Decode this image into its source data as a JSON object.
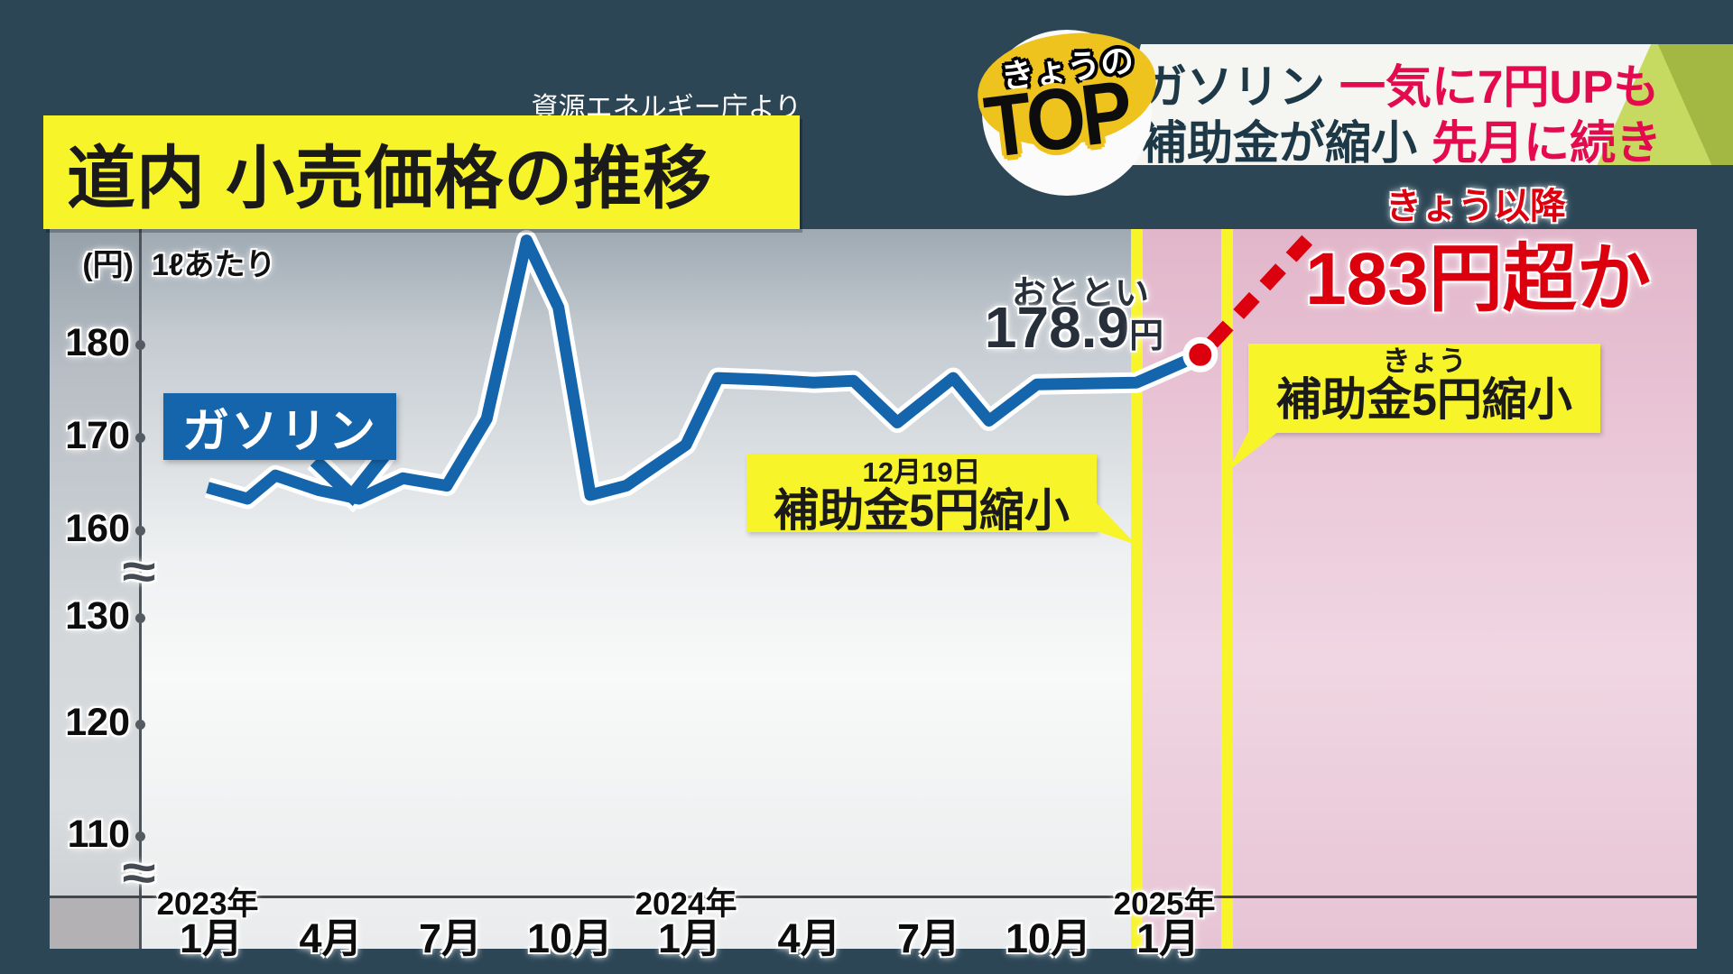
{
  "colors": {
    "background_navy": "#2c4656",
    "accent_yellow": "#f8f42a",
    "badge_yellow": "#eec31d",
    "line_blue": "#1565ac",
    "alert_red": "#dc000f",
    "headline_red": "#e30a4e",
    "headline_navy": "#1d3847",
    "forecast_pink": "#ecccdb"
  },
  "badge": {
    "top": "きょうの",
    "main": "TOP"
  },
  "headline": {
    "line1_dark": "ガソリン",
    "line1_red": "一気に7円UPも",
    "line2_dark": "補助金が縮小",
    "line2_red": "先月に続き"
  },
  "source_note": "資源エネルギー庁より",
  "title": "道内 小売価格の推移",
  "chart_data": {
    "type": "line",
    "title": "道内 小売価格の推移",
    "source": "資源エネルギー庁より",
    "y_unit": "(円)",
    "x_unit_note": "1ℓあたり",
    "y_ticks": [
      180,
      170,
      160,
      130,
      120,
      110
    ],
    "axis_break": true,
    "grid": false,
    "x_ticks": [
      {
        "year": "2023年",
        "month": "1月",
        "m": 0
      },
      {
        "year": "",
        "month": "4月",
        "m": 3
      },
      {
        "year": "",
        "month": "7月",
        "m": 6
      },
      {
        "year": "",
        "month": "10月",
        "m": 9
      },
      {
        "year": "2024年",
        "month": "1月",
        "m": 12
      },
      {
        "year": "",
        "month": "4月",
        "m": 15
      },
      {
        "year": "",
        "month": "7月",
        "m": 18
      },
      {
        "year": "",
        "month": "10月",
        "m": 21
      },
      {
        "year": "2025年",
        "month": "1月",
        "m": 24
      }
    ],
    "series": [
      {
        "name": "ガソリン",
        "color": "#1565ac",
        "x_months_from_2023_01": [
          0,
          1,
          1.7,
          2.8,
          3.8,
          4.9,
          6,
          7,
          8,
          8.8,
          9.6,
          10.5,
          12,
          12.8,
          14,
          15.2,
          16.2,
          17.3,
          18.7,
          19.6,
          20.8,
          23.3,
          24.9
        ],
        "values": [
          164.6,
          163.4,
          165.9,
          164.3,
          163.4,
          165.6,
          164.8,
          172.0,
          191.2,
          184.0,
          163.8,
          164.8,
          169.2,
          176.4,
          176.2,
          175.9,
          176.1,
          171.6,
          176.4,
          171.8,
          175.7,
          175.9,
          178.9
        ]
      }
    ],
    "latest": {
      "label": "おととい",
      "value": 178.9,
      "value_text": "178.9",
      "unit": "円"
    },
    "forecast": {
      "label": "きょう以降",
      "text": "183円超か"
    },
    "events": [
      {
        "date": "12月19日",
        "text": "補助金5円縮小"
      },
      {
        "date": "きょう",
        "text": "補助金5円縮小"
      }
    ]
  }
}
